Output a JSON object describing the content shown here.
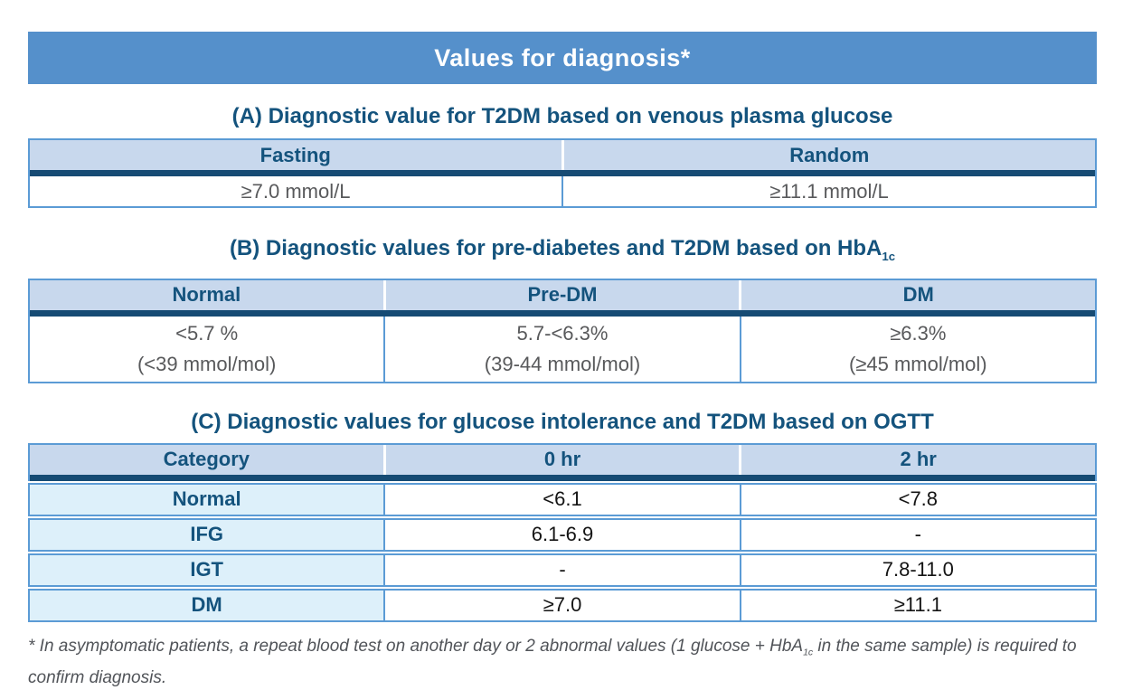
{
  "banner": {
    "title": "Values for diagnosis*"
  },
  "colors": {
    "banner": "#5590CB",
    "headerbg": "#C8D8ED",
    "navy": "#164B74",
    "dkblue": "#14537D",
    "border": "#5B9BD5",
    "rowbg": "#DDF0FA",
    "gray": "#58595B",
    "black": "#141414"
  },
  "section_a": {
    "title": "(A) Diagnostic value for T2DM based on venous plasma glucose",
    "table": {
      "headers": [
        "Fasting",
        "Random"
      ],
      "row": [
        "≥7.0 mmol/L",
        "≥11.1 mmol/L"
      ]
    }
  },
  "section_b": {
    "title_main": "(B) Diagnostic values for pre-diabetes and T2DM based on HbA",
    "title_sub": "1c",
    "table": {
      "headers": [
        "Normal",
        "Pre-DM",
        "DM"
      ],
      "row_line1": [
        "<5.7 %",
        "5.7-<6.3%",
        "≥6.3%"
      ],
      "row_line2": [
        "(<39 mmol/mol)",
        "(39-44 mmol/mol)",
        "(≥45 mmol/mol)"
      ]
    }
  },
  "section_c": {
    "title": "(C) Diagnostic values for glucose intolerance and T2DM based on OGTT",
    "table": {
      "headers": [
        "Category",
        "0 hr",
        "2 hr"
      ],
      "rows": [
        {
          "category": "Normal",
          "h0": "<6.1",
          "h2": "<7.8"
        },
        {
          "category": "IFG",
          "h0": "6.1-6.9",
          "h2": "-"
        },
        {
          "category": "IGT",
          "h0": "-",
          "h2": "7.8-11.0"
        },
        {
          "category": "DM",
          "h0": "≥7.0",
          "h2": "≥11.1"
        }
      ]
    }
  },
  "footnote": {
    "part1": "* In asymptomatic patients, a repeat blood test on another day or 2 abnormal values (1 glucose + HbA",
    "sub": "1c",
    "part2": " in the same sample) is required to confirm diagnosis."
  }
}
